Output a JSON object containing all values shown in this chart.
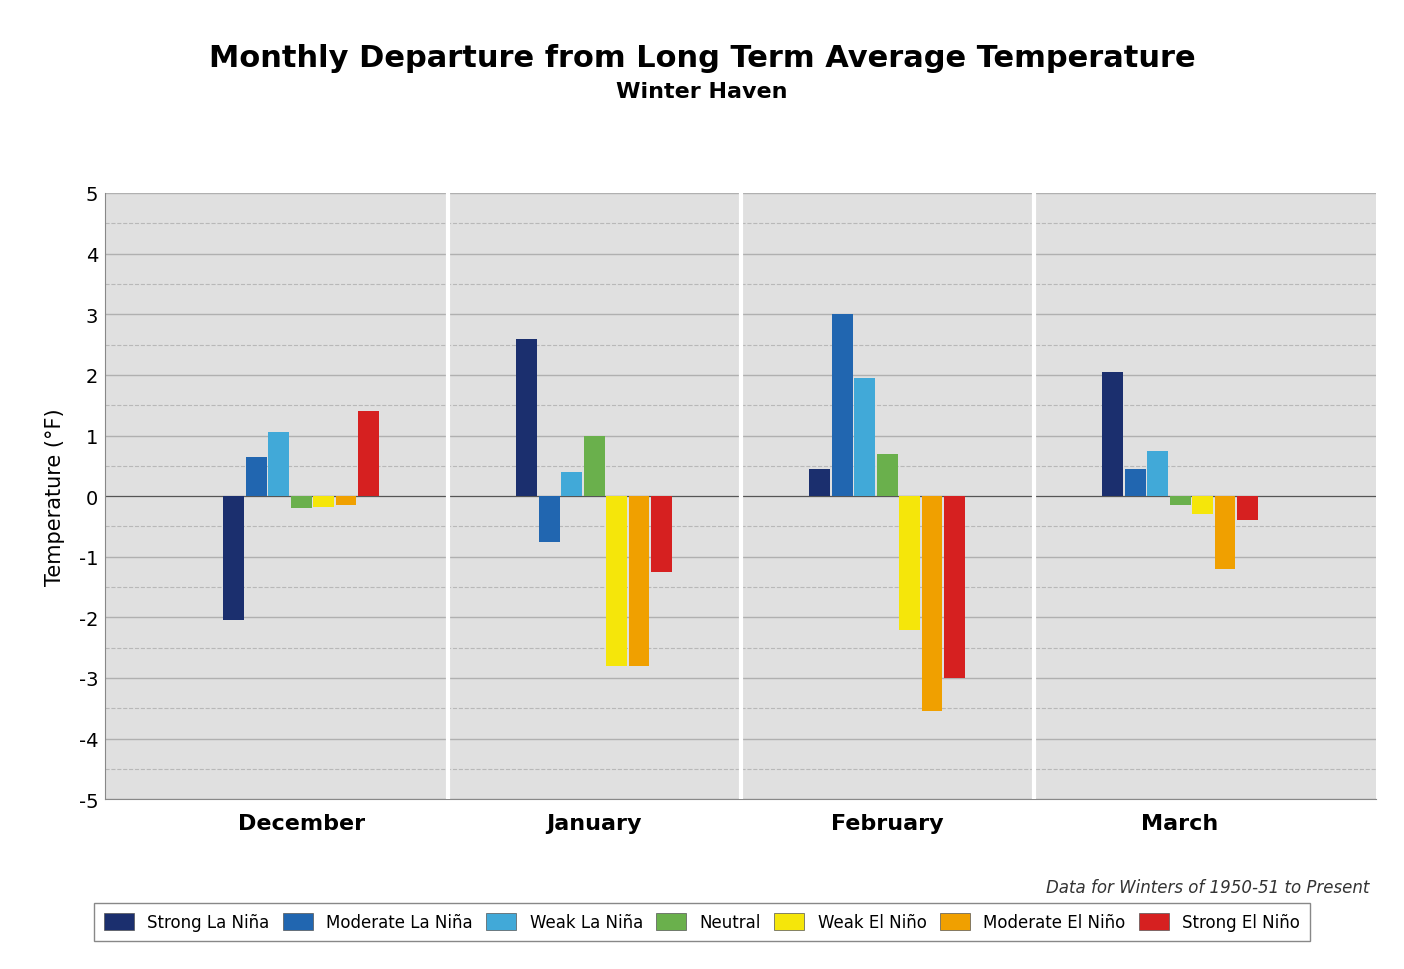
{
  "title": "Monthly Departure from Long Term Average Temperature",
  "subtitle": "Winter Haven",
  "ylabel": "Temperature (°F)",
  "footnote": "Data for Winters of 1950-51 to Present",
  "months": [
    "December",
    "January",
    "February",
    "March"
  ],
  "categories": [
    "Strong La Niña",
    "Moderate La Niña",
    "Weak La Niña",
    "Neutral",
    "Weak El Niño",
    "Moderate El Niño",
    "Strong El Niño"
  ],
  "colors": [
    "#1b2f6e",
    "#2166b0",
    "#41a9d8",
    "#6ab04c",
    "#f5e60a",
    "#f0a000",
    "#d62020"
  ],
  "data": {
    "December": [
      -2.05,
      0.65,
      1.05,
      -0.2,
      -0.18,
      -0.15,
      1.4
    ],
    "January": [
      2.6,
      -0.75,
      0.4,
      1.0,
      -2.8,
      -2.8,
      -1.25
    ],
    "February": [
      0.45,
      3.0,
      1.95,
      0.7,
      -2.2,
      -3.55,
      -3.0
    ],
    "March": [
      2.05,
      0.45,
      0.75,
      -0.15,
      -0.3,
      -1.2,
      -0.4
    ]
  },
  "ylim": [
    -5,
    5
  ],
  "yticks": [
    -5,
    -4,
    -3,
    -2,
    -1,
    0,
    1,
    2,
    3,
    4,
    5
  ],
  "plot_bg": "#e0e0e0",
  "outer_bg": "#ffffff",
  "bar_width": 0.115,
  "title_fontsize": 22,
  "subtitle_fontsize": 16,
  "ylabel_fontsize": 15,
  "xtick_fontsize": 16,
  "ytick_fontsize": 14,
  "legend_fontsize": 12,
  "footnote_fontsize": 12
}
